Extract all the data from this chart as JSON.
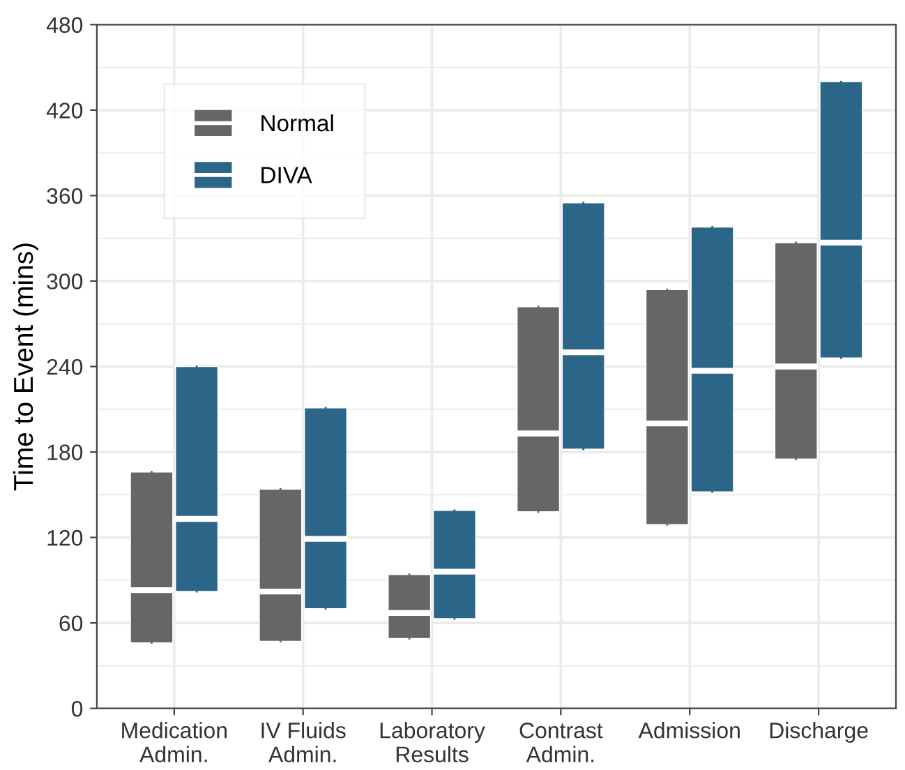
{
  "chart_data": {
    "type": "box",
    "ylabel": "Time to Event (mins)",
    "categories": [
      "Medication\nAdmin.",
      "IV Fluids\nAdmin.",
      "Laboratory\nResults",
      "Contrast\nAdmin.",
      "Admission",
      "Discharge"
    ],
    "series": [
      {
        "name": "Normal",
        "color": "#666666",
        "boxes": [
          {
            "low": 46,
            "q1": 46,
            "median": 83,
            "q3": 166,
            "high": 166
          },
          {
            "low": 47,
            "q1": 47,
            "median": 82,
            "q3": 154,
            "high": 154
          },
          {
            "low": 49,
            "q1": 49,
            "median": 67,
            "q3": 94,
            "high": 94
          },
          {
            "low": 138,
            "q1": 138,
            "median": 193,
            "q3": 282,
            "high": 282
          },
          {
            "low": 129,
            "q1": 129,
            "median": 200,
            "q3": 294,
            "high": 294
          },
          {
            "low": 175,
            "q1": 175,
            "median": 240,
            "q3": 327,
            "high": 327
          }
        ]
      },
      {
        "name": "DIVA",
        "color": "#2b6688",
        "boxes": [
          {
            "low": 82,
            "q1": 82,
            "median": 133,
            "q3": 240,
            "high": 240
          },
          {
            "low": 70,
            "q1": 70,
            "median": 119,
            "q3": 211,
            "high": 211
          },
          {
            "low": 63,
            "q1": 63,
            "median": 96,
            "q3": 139,
            "high": 139
          },
          {
            "low": 182,
            "q1": 182,
            "median": 250,
            "q3": 355,
            "high": 355
          },
          {
            "low": 152,
            "q1": 152,
            "median": 237,
            "q3": 338,
            "high": 338
          },
          {
            "low": 246,
            "q1": 246,
            "median": 327,
            "q3": 440,
            "high": 440
          }
        ]
      }
    ],
    "ylim": [
      0,
      480
    ],
    "yticks": [
      0,
      60,
      120,
      180,
      240,
      300,
      360,
      420,
      480
    ],
    "grid": true,
    "legend": "top left"
  }
}
